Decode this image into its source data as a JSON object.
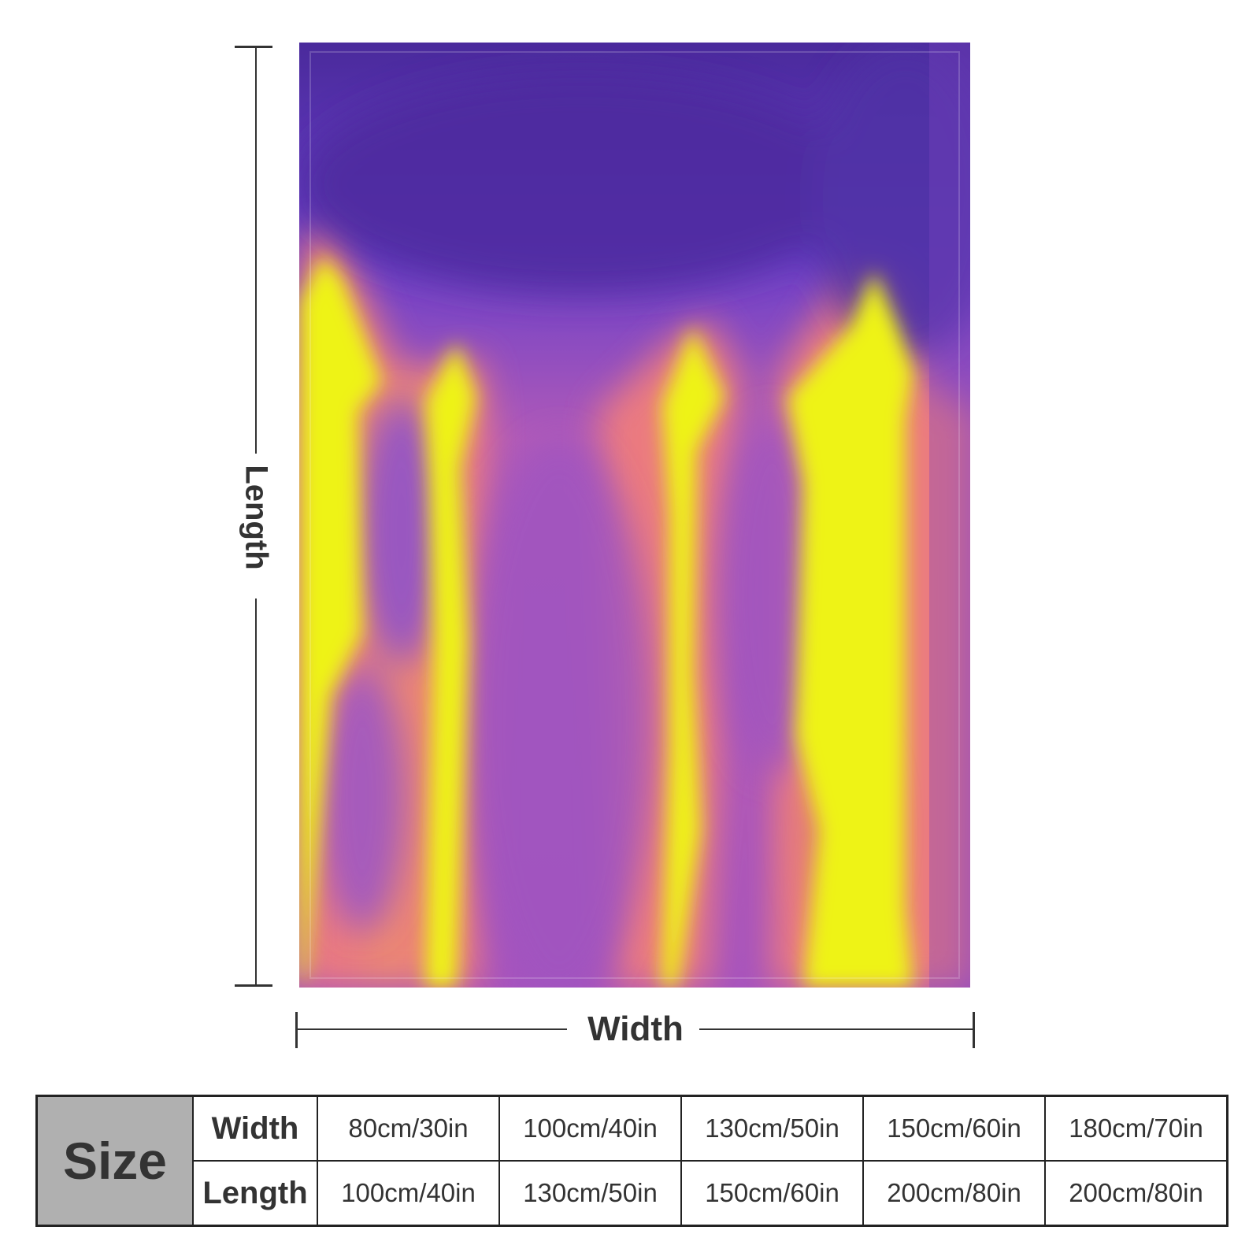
{
  "dimension_labels": {
    "length": "Length",
    "width": "Width"
  },
  "colors": {
    "deep_purple": "#4a2a9c",
    "violet": "#7140cf",
    "magenta": "#a653be",
    "salmon": "#ef7d7d",
    "yellow": "#eef315",
    "table_header_gray": "#b0b0b0"
  },
  "size_table": {
    "header": "Size",
    "rows": [
      {
        "label": "Width",
        "values": [
          "80cm/30in",
          "100cm/40in",
          "130cm/50in",
          "150cm/60in",
          "180cm/70in"
        ]
      },
      {
        "label": "Length",
        "values": [
          "100cm/40in",
          "130cm/50in",
          "150cm/60in",
          "200cm/80in",
          "200cm/80in"
        ]
      }
    ]
  }
}
